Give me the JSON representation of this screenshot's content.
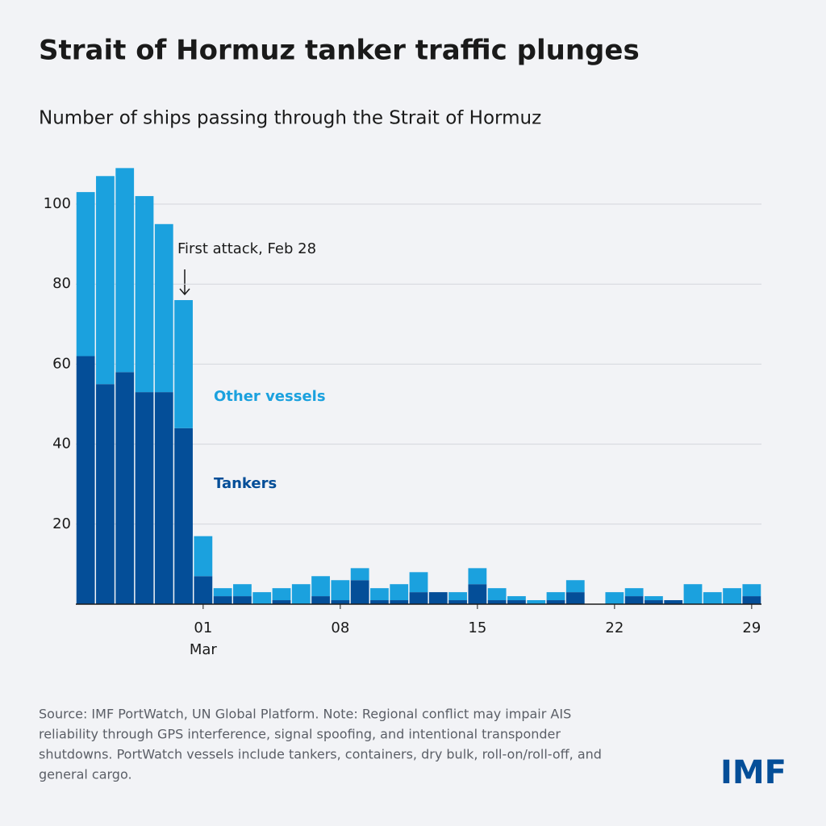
{
  "chart_data": {
    "type": "stacked_bar",
    "title": "Strait of Hormuz tanker traffic plunges",
    "subtitle": "Number of ships passing through the Strait of Hormuz",
    "categories": [
      null,
      null,
      null,
      null,
      null,
      null,
      "01",
      null,
      null,
      null,
      null,
      null,
      null,
      "08",
      null,
      null,
      null,
      null,
      null,
      null,
      "15",
      null,
      null,
      null,
      null,
      null,
      null,
      "22",
      null,
      null,
      null,
      null,
      null,
      null,
      "29"
    ],
    "category_month": "Mar",
    "series": [
      {
        "name": "Tankers",
        "color": "#044e98",
        "values": [
          62,
          55,
          58,
          53,
          53,
          44,
          7,
          2,
          2,
          0,
          1,
          0,
          2,
          1,
          6,
          1,
          1,
          3,
          3,
          1,
          5,
          1,
          1,
          0,
          1,
          3,
          0,
          0,
          2,
          1,
          1,
          0,
          0,
          0,
          2
        ]
      },
      {
        "name": "Other vessels",
        "color": "#1ba1de",
        "values": [
          41,
          52,
          51,
          49,
          42,
          32,
          10,
          2,
          3,
          3,
          3,
          5,
          5,
          5,
          3,
          3,
          4,
          5,
          0,
          2,
          4,
          3,
          1,
          1,
          2,
          3,
          0,
          3,
          2,
          1,
          0,
          5,
          3,
          4,
          3
        ]
      }
    ],
    "ylim": [
      0,
      110
    ],
    "yticks": [
      20,
      40,
      60,
      80,
      100
    ],
    "grid": true,
    "annotation": {
      "text": "First attack, Feb 28",
      "index": 5
    },
    "source": [
      "Source: IMF PortWatch, UN Global Platform. Note: Regional conflict may impair AIS",
      "reliability through GPS interference, signal spoofing, and intentional transponder",
      "shutdowns. PortWatch vessels include tankers, containers, dry bulk, roll-on/roll-off, and",
      "general cargo."
    ],
    "logo": "IMF"
  }
}
